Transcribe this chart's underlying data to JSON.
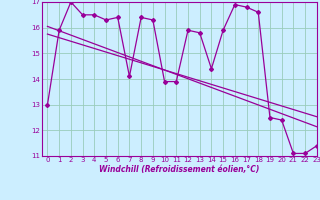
{
  "x": [
    0,
    1,
    2,
    3,
    4,
    5,
    6,
    7,
    8,
    9,
    10,
    11,
    12,
    13,
    14,
    15,
    16,
    17,
    18,
    19,
    20,
    21,
    22,
    23
  ],
  "y_main": [
    13.0,
    15.9,
    17.0,
    16.5,
    16.5,
    16.3,
    16.4,
    14.1,
    16.4,
    16.3,
    13.9,
    13.9,
    15.9,
    15.8,
    14.4,
    15.9,
    16.9,
    16.8,
    16.6,
    12.5,
    12.4,
    11.1,
    11.1,
    11.4
  ],
  "y_trend1": [
    16.05,
    15.88,
    15.71,
    15.54,
    15.37,
    15.2,
    15.03,
    14.86,
    14.69,
    14.52,
    14.35,
    14.18,
    14.01,
    13.84,
    13.67,
    13.5,
    13.33,
    13.16,
    12.99,
    12.82,
    12.65,
    12.48,
    12.31,
    12.14
  ],
  "y_trend2": [
    15.75,
    15.61,
    15.47,
    15.33,
    15.19,
    15.05,
    14.91,
    14.77,
    14.63,
    14.49,
    14.35,
    14.21,
    14.07,
    13.93,
    13.79,
    13.65,
    13.51,
    13.37,
    13.23,
    13.09,
    12.95,
    12.81,
    12.67,
    12.53
  ],
  "line_color": "#990099",
  "bg_color": "#cceeff",
  "grid_color": "#99ccbb",
  "xlabel": "Windchill (Refroidissement éolien,°C)",
  "xlim": [
    -0.5,
    23
  ],
  "ylim": [
    11,
    17
  ],
  "yticks": [
    11,
    12,
    13,
    14,
    15,
    16,
    17
  ],
  "xticks": [
    0,
    1,
    2,
    3,
    4,
    5,
    6,
    7,
    8,
    9,
    10,
    11,
    12,
    13,
    14,
    15,
    16,
    17,
    18,
    19,
    20,
    21,
    22,
    23
  ]
}
